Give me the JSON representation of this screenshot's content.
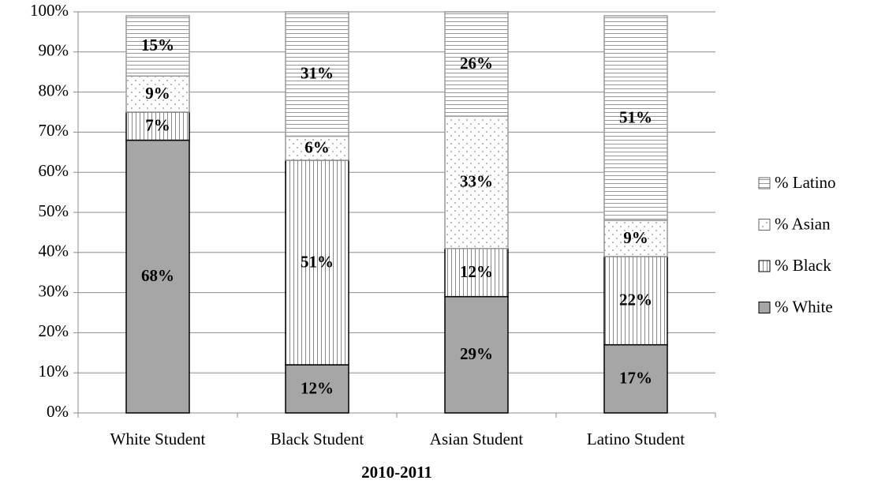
{
  "chart_data": {
    "type": "stacked_bar",
    "x_label": "2010-2011",
    "categories": [
      "White Student",
      "Black Student",
      "Asian Student",
      "Latino Student"
    ],
    "series": [
      {
        "name": "% White",
        "color": "#a6a6a6",
        "pattern": "solid",
        "border": "#000000",
        "values": [
          68,
          12,
          29,
          17
        ],
        "value_labels": [
          "68%",
          "12%",
          "29%",
          "17%"
        ]
      },
      {
        "name": "% Black",
        "color": "#ffffff",
        "pattern": "vertical",
        "border": "#000000",
        "values": [
          7,
          51,
          12,
          22
        ],
        "value_labels": [
          "7%",
          "51%",
          "12%",
          "22%"
        ]
      },
      {
        "name": "% Asian",
        "color": "#ffffff",
        "pattern": "dots",
        "border": "#999999",
        "values": [
          9,
          6,
          33,
          9
        ],
        "value_labels": [
          "9%",
          "6%",
          "33%",
          "9%"
        ]
      },
      {
        "name": "% Latino",
        "color": "#ffffff",
        "pattern": "horizontal",
        "border": "#999999",
        "values": [
          15,
          31,
          26,
          51
        ],
        "value_labels": [
          "15%",
          "31%",
          "26%",
          "51%"
        ]
      }
    ],
    "ylim": [
      0,
      100
    ],
    "yticks": [
      {
        "value": 0,
        "label": "0%"
      },
      {
        "value": 10,
        "label": "10%"
      },
      {
        "value": 20,
        "label": "20%"
      },
      {
        "value": 30,
        "label": "30%"
      },
      {
        "value": 40,
        "label": "40%"
      },
      {
        "value": 50,
        "label": "50%"
      },
      {
        "value": 60,
        "label": "60%"
      },
      {
        "value": 70,
        "label": "70%"
      },
      {
        "value": 80,
        "label": "80%"
      },
      {
        "value": 90,
        "label": "90%"
      },
      {
        "value": 100,
        "label": "100%"
      }
    ],
    "grid": true,
    "legend": "right"
  }
}
